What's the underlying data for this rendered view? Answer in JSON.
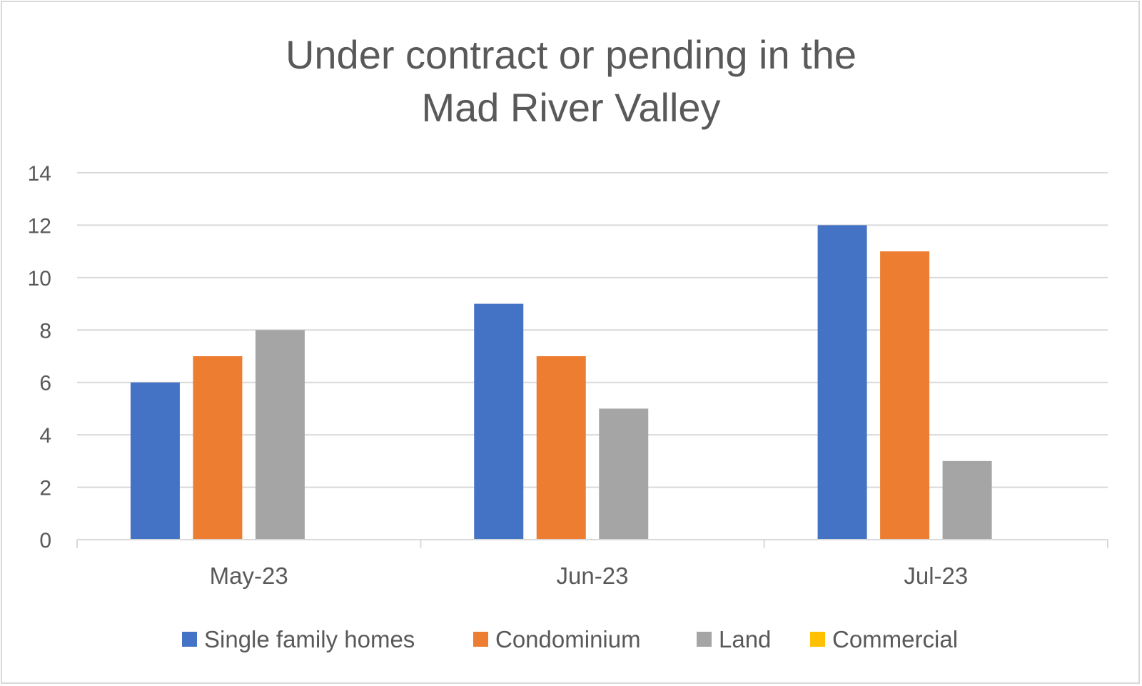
{
  "chart_data": {
    "type": "bar",
    "title_lines": [
      "Under contract or pending in the",
      "Mad River Valley"
    ],
    "categories": [
      "May-23",
      "Jun-23",
      "Jul-23"
    ],
    "series": [
      {
        "name": "Single family homes",
        "values": [
          6,
          9,
          12
        ],
        "color": "#4472c4"
      },
      {
        "name": "Condominium",
        "values": [
          7,
          7,
          11
        ],
        "color": "#ed7d31"
      },
      {
        "name": "Land",
        "values": [
          8,
          5,
          3
        ],
        "color": "#a5a5a5"
      },
      {
        "name": "Commercial",
        "values": [
          0,
          0,
          0
        ],
        "color": "#ffc000"
      }
    ],
    "yticks": [
      "0",
      "2",
      "4",
      "6",
      "8",
      "10",
      "12",
      "14"
    ],
    "ylim": [
      0,
      14
    ],
    "grid": true,
    "legend_position": "bottom"
  }
}
